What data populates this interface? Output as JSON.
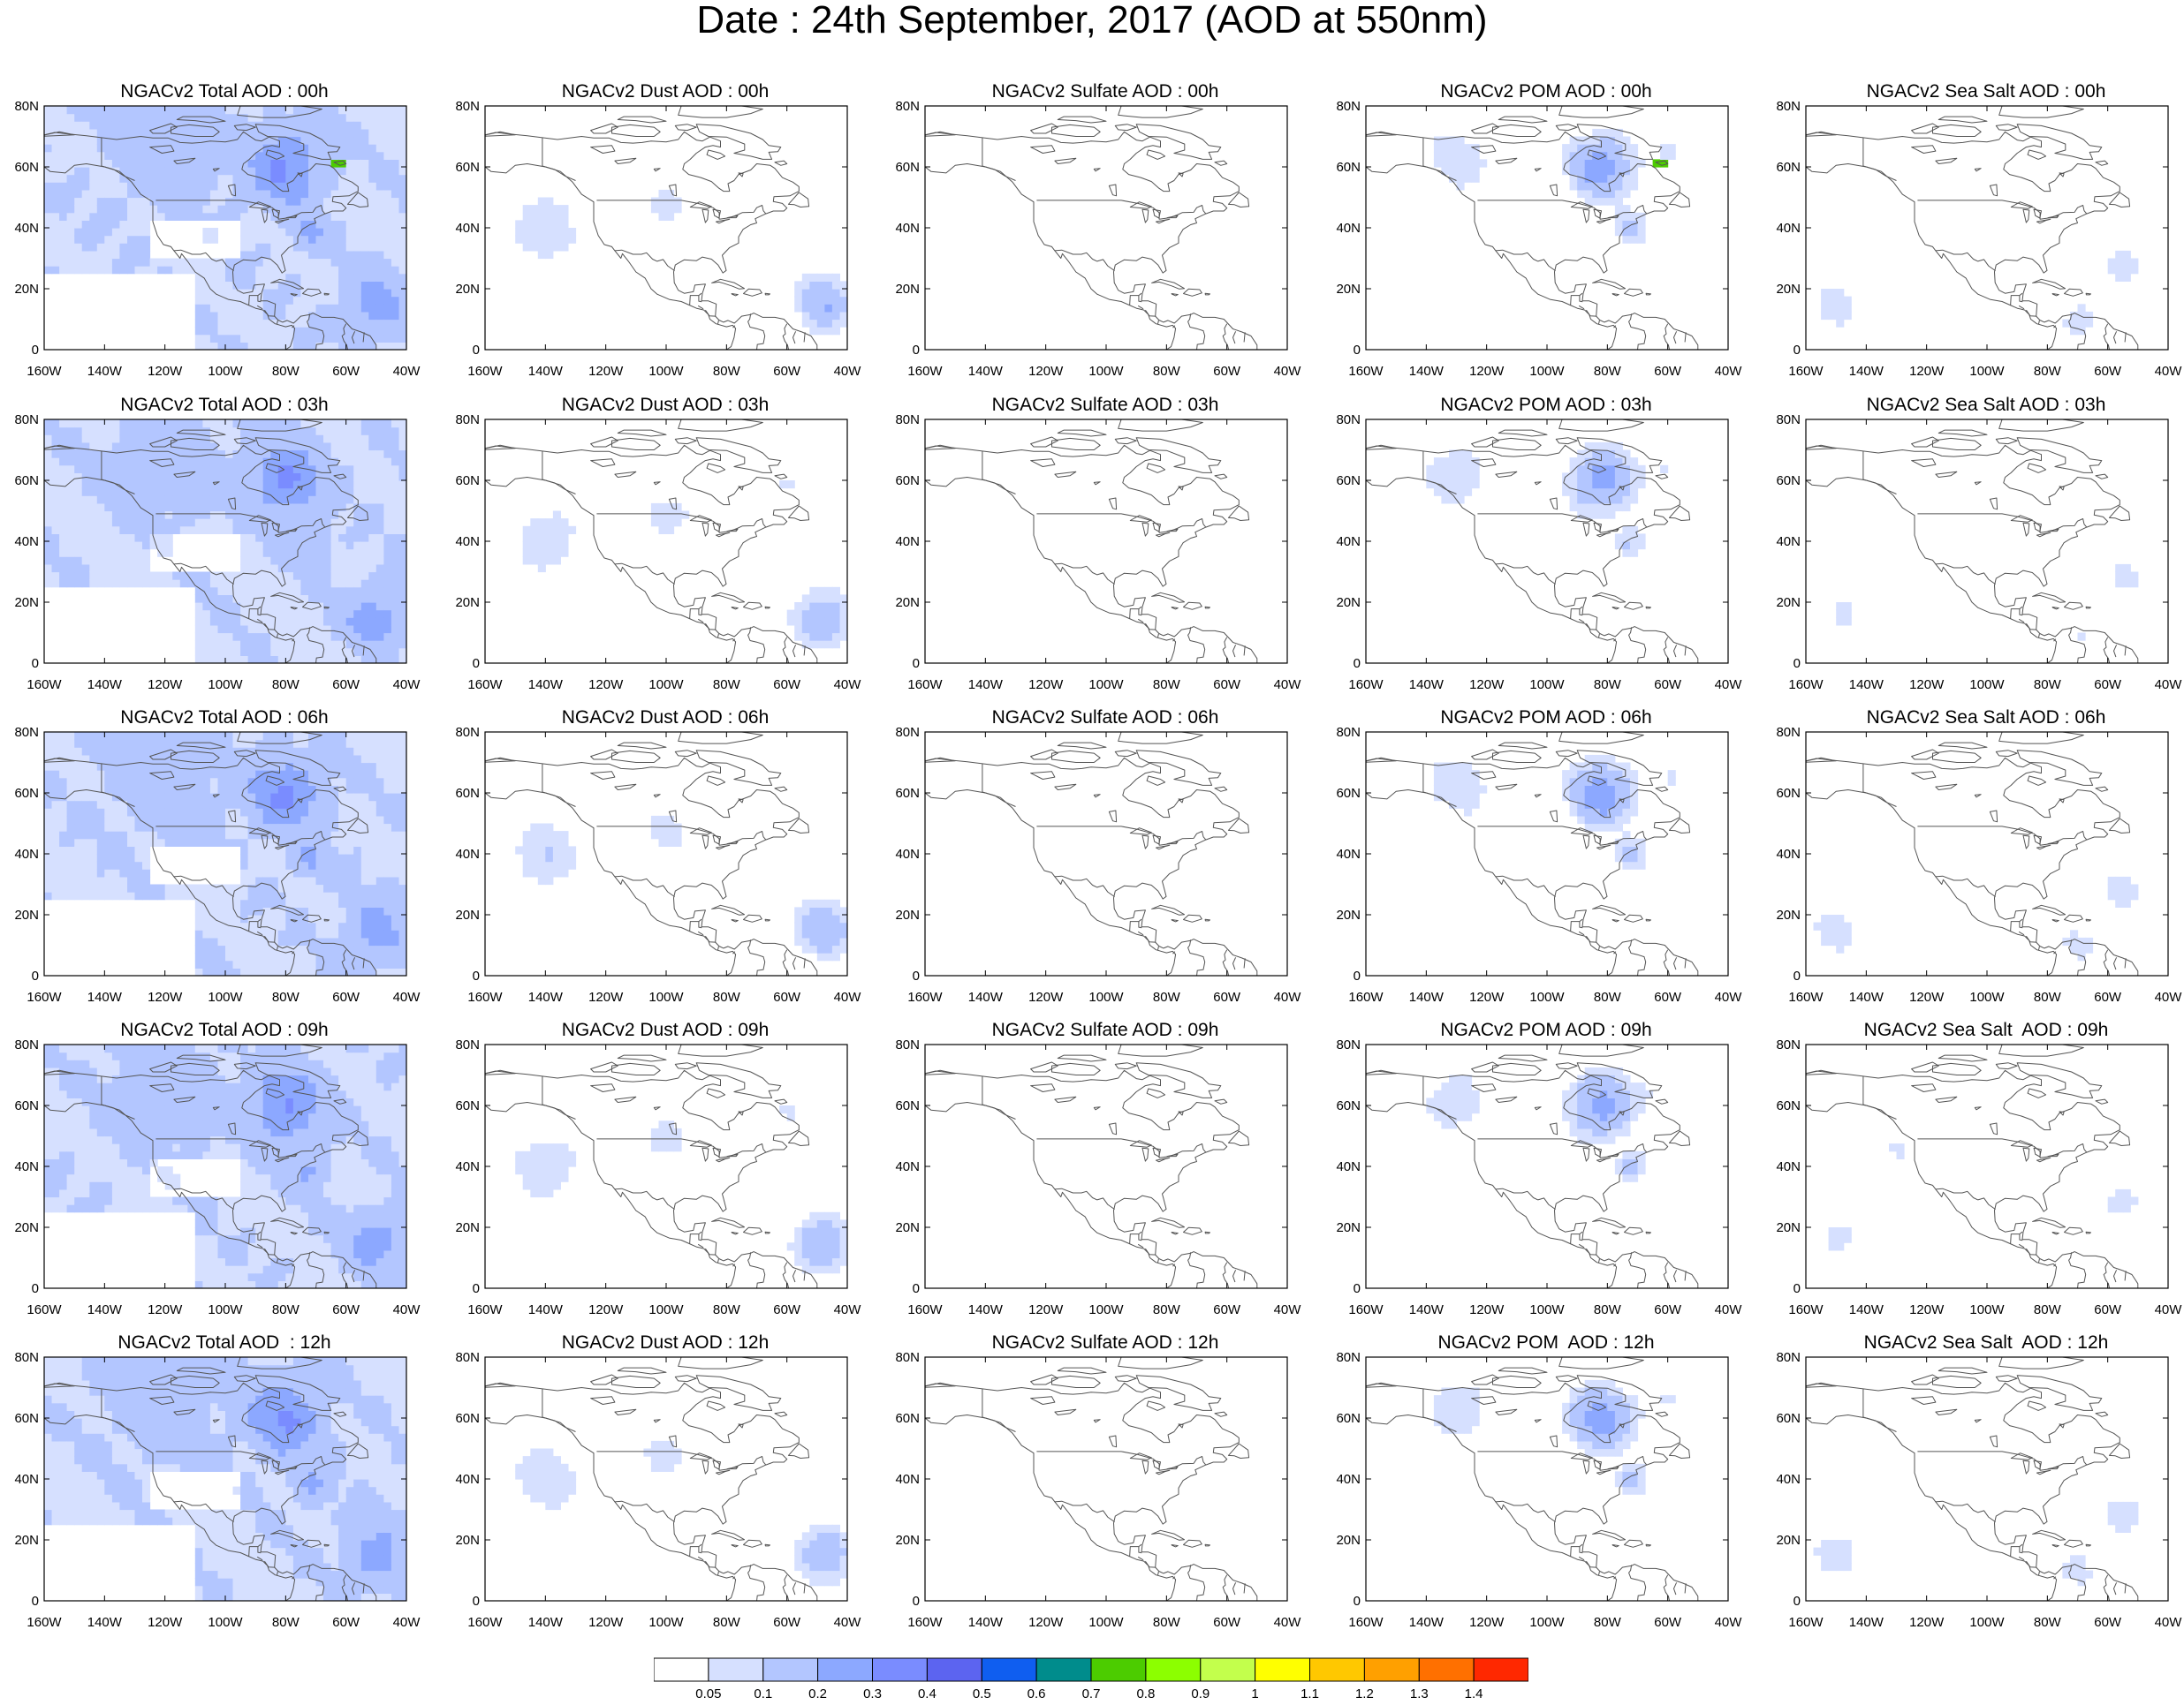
{
  "title": "Date : 24th September, 2017 (AOD at 550nm)",
  "colors": {
    "levels": [
      "#ffffff",
      "#d6e0ff",
      "#b3c6ff",
      "#8ca8ff",
      "#7a8cff",
      "#5c64f0",
      "#0f5ef0",
      "#008c8c",
      "#4ccc00",
      "#8cff00",
      "#c3ff4c",
      "#ffff00",
      "#ffc800",
      "#ffa000",
      "#ff7000",
      "#ff2800"
    ],
    "coast": "#555555"
  },
  "axes": {
    "lon_labels": [
      "160W",
      "140W",
      "120W",
      "100W",
      "80W",
      "60W",
      "40W"
    ],
    "lat_labels": [
      "80N",
      "60N",
      "40N",
      "20N",
      "0"
    ],
    "lon_range": [
      -160,
      -40
    ],
    "lat_range": [
      0,
      80
    ]
  },
  "panels": [
    [
      {
        "title": "NGACv2 Total AOD : 00h",
        "field": "total"
      },
      {
        "title": "NGACv2 Dust AOD : 00h",
        "field": "dust"
      },
      {
        "title": "NGACv2 Sulfate AOD : 00h",
        "field": "sulfate"
      },
      {
        "title": "NGACv2 POM AOD : 00h",
        "field": "pom"
      },
      {
        "title": "NGACv2 Sea Salt AOD : 00h",
        "field": "seasalt"
      }
    ],
    [
      {
        "title": "NGACv2 Total AOD : 03h",
        "field": "total"
      },
      {
        "title": "NGACv2 Dust AOD : 03h",
        "field": "dust"
      },
      {
        "title": "NGACv2 Sulfate AOD : 03h",
        "field": "sulfate"
      },
      {
        "title": "NGACv2 POM AOD : 03h",
        "field": "pom"
      },
      {
        "title": "NGACv2 Sea Salt AOD : 03h",
        "field": "seasalt"
      }
    ],
    [
      {
        "title": "NGACv2 Total AOD : 06h",
        "field": "total"
      },
      {
        "title": "NGACv2 Dust AOD : 06h",
        "field": "dust"
      },
      {
        "title": "NGACv2 Sulfate AOD : 06h",
        "field": "sulfate"
      },
      {
        "title": "NGACv2 POM AOD : 06h",
        "field": "pom"
      },
      {
        "title": "NGACv2 Sea Salt AOD : 06h",
        "field": "seasalt"
      }
    ],
    [
      {
        "title": "NGACv2 Total AOD : 09h",
        "field": "total"
      },
      {
        "title": "NGACv2 Dust AOD : 09h",
        "field": "dust"
      },
      {
        "title": "NGACv2 Sulfate AOD : 09h",
        "field": "sulfate"
      },
      {
        "title": "NGACv2 POM AOD : 09h",
        "field": "pom"
      },
      {
        "title": "NGACv2 Sea Salt  AOD : 09h",
        "field": "seasalt"
      }
    ],
    [
      {
        "title": "NGACv2 Total AOD  : 12h",
        "field": "total"
      },
      {
        "title": "NGACv2 Dust AOD : 12h",
        "field": "dust"
      },
      {
        "title": "NGACv2 Sulfate AOD : 12h",
        "field": "sulfate"
      },
      {
        "title": "NGACv2 POM  AOD : 12h",
        "field": "pom"
      },
      {
        "title": "NGACv2 Sea Salt  AOD : 12h",
        "field": "seasalt"
      }
    ]
  ],
  "colorbar": {
    "labels": [
      "0.05",
      "0.1",
      "0.2",
      "0.3",
      "0.4",
      "0.5",
      "0.6",
      "0.7",
      "0.8",
      "0.9",
      "1",
      "1.1",
      "1.2",
      "1.3",
      "1.4"
    ]
  }
}
